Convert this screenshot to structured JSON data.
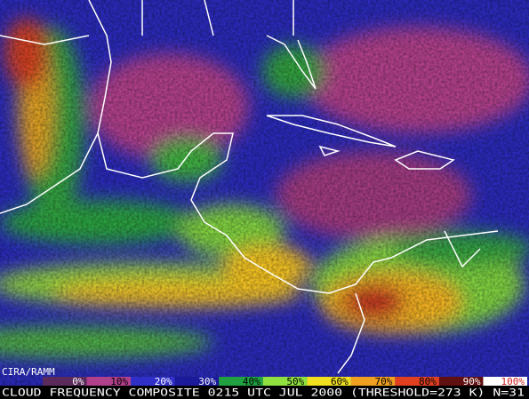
{
  "credit": "CIRA/RAMM",
  "legend": {
    "items": [
      {
        "label": "0%",
        "color": "#5a2a5a"
      },
      {
        "label": "10%",
        "color": "#b0408a"
      },
      {
        "label": "20%",
        "color": "#3030c8"
      },
      {
        "label": "30%",
        "color": "#1a1a9a"
      },
      {
        "label": "40%",
        "color": "#20a040"
      },
      {
        "label": "50%",
        "color": "#90e040"
      },
      {
        "label": "60%",
        "color": "#f0e020"
      },
      {
        "label": "70%",
        "color": "#f0a020"
      },
      {
        "label": "80%",
        "color": "#e04020"
      },
      {
        "label": "90%",
        "color": "#601010"
      },
      {
        "label": "100%",
        "color": "#ffffff"
      }
    ]
  },
  "caption": "CLOUD FREQUENCY COMPOSITE 0215 UTC JUL 2000 (THRESHOLD=273 K) N=31"
}
